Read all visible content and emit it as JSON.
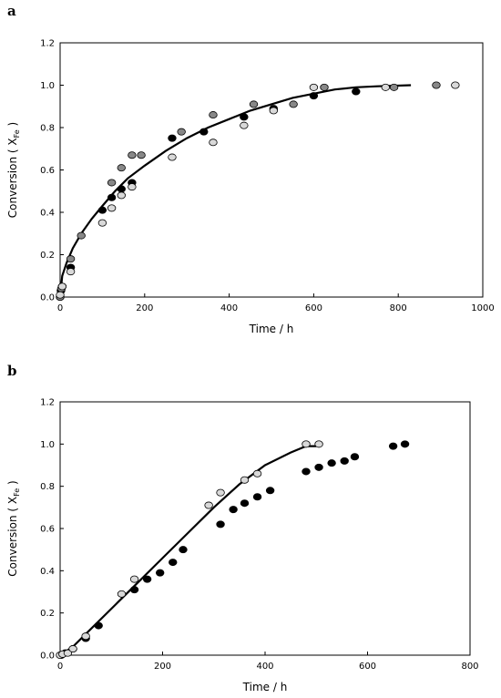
{
  "chart_data": [
    {
      "panel": "a",
      "type": "scatter",
      "xlabel": "Time / h",
      "ylabel_main": "Conversion",
      "ylabel_sym": "X",
      "ylabel_sub": "Fe",
      "xlim": [
        0,
        1000
      ],
      "ylim": [
        0,
        1.2
      ],
      "xticks": [
        "0",
        "200",
        "400",
        "600",
        "800",
        "1000"
      ],
      "yticks": [
        "0.0",
        "0.2",
        "0.4",
        "0.6",
        "0.8",
        "1.0",
        "1.2"
      ],
      "grid": false,
      "series": [
        {
          "fill": "#000000",
          "points": [
            [
              0,
              0.0
            ],
            [
              2,
              0.03
            ],
            [
              5,
              0.05
            ],
            [
              25,
              0.14
            ],
            [
              100,
              0.41
            ],
            [
              122,
              0.47
            ],
            [
              145,
              0.51
            ],
            [
              170,
              0.54
            ],
            [
              265,
              0.75
            ],
            [
              340,
              0.78
            ],
            [
              435,
              0.85
            ],
            [
              505,
              0.89
            ],
            [
              600,
              0.95
            ],
            [
              700,
              0.97
            ]
          ]
        },
        {
          "fill": "#888888",
          "points": [
            [
              0,
              0.0
            ],
            [
              3,
              0.04
            ],
            [
              25,
              0.18
            ],
            [
              50,
              0.29
            ],
            [
              122,
              0.54
            ],
            [
              145,
              0.61
            ],
            [
              170,
              0.67
            ],
            [
              192,
              0.67
            ],
            [
              287,
              0.78
            ],
            [
              362,
              0.86
            ],
            [
              458,
              0.91
            ],
            [
              552,
              0.91
            ],
            [
              625,
              0.99
            ],
            [
              790,
              0.99
            ],
            [
              890,
              1.0
            ]
          ]
        },
        {
          "fill": "#d9d9d9",
          "points": [
            [
              0,
              0.01
            ],
            [
              5,
              0.05
            ],
            [
              25,
              0.12
            ],
            [
              100,
              0.35
            ],
            [
              122,
              0.42
            ],
            [
              145,
              0.48
            ],
            [
              170,
              0.52
            ],
            [
              265,
              0.66
            ],
            [
              362,
              0.73
            ],
            [
              435,
              0.81
            ],
            [
              505,
              0.88
            ],
            [
              600,
              0.99
            ],
            [
              770,
              0.99
            ],
            [
              935,
              1.0
            ]
          ]
        }
      ],
      "fit_curve": [
        [
          0,
          0.0
        ],
        [
          5,
          0.1
        ],
        [
          15,
          0.16
        ],
        [
          30,
          0.23
        ],
        [
          50,
          0.3
        ],
        [
          75,
          0.37
        ],
        [
          100,
          0.43
        ],
        [
          130,
          0.5
        ],
        [
          160,
          0.56
        ],
        [
          200,
          0.62
        ],
        [
          250,
          0.69
        ],
        [
          300,
          0.75
        ],
        [
          350,
          0.8
        ],
        [
          400,
          0.84
        ],
        [
          450,
          0.88
        ],
        [
          500,
          0.91
        ],
        [
          550,
          0.94
        ],
        [
          600,
          0.96
        ],
        [
          650,
          0.98
        ],
        [
          700,
          0.99
        ],
        [
          750,
          0.995
        ],
        [
          830,
          1.0
        ]
      ]
    },
    {
      "panel": "b",
      "type": "scatter",
      "xlabel": "Time / h",
      "ylabel_main": "Conversion",
      "ylabel_sym": "X",
      "ylabel_sub": "Fe",
      "xlim": [
        0,
        800
      ],
      "ylim": [
        0,
        1.2
      ],
      "xticks": [
        "0",
        "200",
        "400",
        "600",
        "800"
      ],
      "yticks": [
        "0.0",
        "0.2",
        "0.4",
        "0.6",
        "0.8",
        "1.0",
        "1.2"
      ],
      "grid": false,
      "series": [
        {
          "fill": "#000000",
          "points": [
            [
              2,
              0.0
            ],
            [
              10,
              0.01
            ],
            [
              25,
              0.03
            ],
            [
              50,
              0.08
            ],
            [
              75,
              0.14
            ],
            [
              145,
              0.31
            ],
            [
              170,
              0.36
            ],
            [
              195,
              0.39
            ],
            [
              220,
              0.44
            ],
            [
              240,
              0.5
            ],
            [
              313,
              0.62
            ],
            [
              338,
              0.69
            ],
            [
              360,
              0.72
            ],
            [
              385,
              0.75
            ],
            [
              410,
              0.78
            ],
            [
              480,
              0.87
            ],
            [
              505,
              0.89
            ],
            [
              530,
              0.91
            ],
            [
              555,
              0.92
            ],
            [
              575,
              0.94
            ],
            [
              650,
              0.99
            ],
            [
              673,
              1.0
            ]
          ]
        },
        {
          "fill": "#d9d9d9",
          "points": [
            [
              0,
              0.0
            ],
            [
              5,
              0.005
            ],
            [
              15,
              0.01
            ],
            [
              25,
              0.03
            ],
            [
              50,
              0.09
            ],
            [
              120,
              0.29
            ],
            [
              145,
              0.36
            ],
            [
              290,
              0.71
            ],
            [
              313,
              0.77
            ],
            [
              360,
              0.83
            ],
            [
              385,
              0.86
            ],
            [
              480,
              1.0
            ],
            [
              505,
              1.0
            ]
          ]
        }
      ],
      "fit_curve": [
        [
          0,
          0.0
        ],
        [
          25,
          0.04
        ],
        [
          50,
          0.1
        ],
        [
          100,
          0.22
        ],
        [
          150,
          0.34
        ],
        [
          200,
          0.46
        ],
        [
          250,
          0.58
        ],
        [
          300,
          0.7
        ],
        [
          350,
          0.81
        ],
        [
          400,
          0.9
        ],
        [
          450,
          0.96
        ],
        [
          480,
          0.99
        ],
        [
          500,
          0.99
        ]
      ]
    }
  ]
}
